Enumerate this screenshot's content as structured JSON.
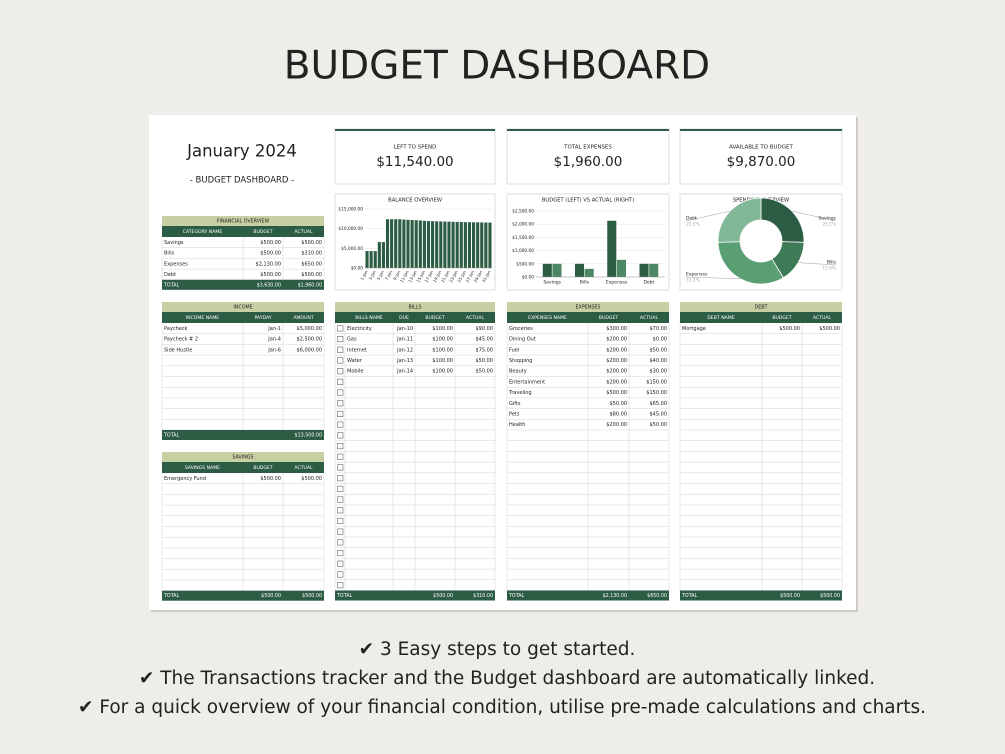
{
  "header": {
    "title": "BUDGET DASHBOARD"
  },
  "sheet": {
    "month": "January 2024",
    "subtitle": "- BUDGET DASHBOARD -",
    "kpis": [
      {
        "label": "LEFT TO SPEND",
        "value": "$11,540.00"
      },
      {
        "label": "TOTAL EXPENSES",
        "value": "$1,960.00"
      },
      {
        "label": "AVAILABLE TO BUDGET",
        "value": "$9,870.00"
      }
    ],
    "tables": {
      "financial": {
        "title": "FINANCIAL OVERVIEW",
        "columns": [
          "CATEGORY NAME",
          "BUDGET",
          "ACTUAL"
        ],
        "rows": [
          [
            "Savings",
            "$500.00",
            "$500.00"
          ],
          [
            "Bills",
            "$500.00",
            "$310.00"
          ],
          [
            "Expenses",
            "$2,130.00",
            "$650.00"
          ],
          [
            "Debt",
            "$500.00",
            "$500.00"
          ]
        ],
        "total": [
          "TOTAL",
          "$3,630.00",
          "$1,960.00"
        ]
      },
      "income": {
        "title": "INCOME",
        "columns": [
          "INCOME NAME",
          "PAYDAY",
          "AMOUNT"
        ],
        "rows": [
          [
            "Paycheck",
            "Jan-1",
            "$5,000.00"
          ],
          [
            "Paycheck # 2",
            "Jan-4",
            "$2,500.00"
          ],
          [
            "Side Hustle",
            "Jan-6",
            "$6,000.00"
          ]
        ],
        "total": [
          "TOTAL",
          null,
          "$13,500.00"
        ]
      },
      "savings": {
        "title": "SAVINGS",
        "columns": [
          "SAVINGS NAME",
          "BUDGET",
          "ACTUAL"
        ],
        "rows": [
          [
            "Emergency Fund",
            "$500.00",
            "$500.00"
          ]
        ],
        "total": [
          "TOTAL",
          "$500.00",
          "$500.00"
        ]
      },
      "bills": {
        "title": "BILLS",
        "columns": [
          "BILLS NAME",
          "DUE",
          "BUDGET",
          "ACTUAL"
        ],
        "rows": [
          [
            "Electricity",
            "Jan-10",
            "$100.00",
            "$90.00"
          ],
          [
            "Gas",
            "Jan-11",
            "$100.00",
            "$45.00"
          ],
          [
            "Internet",
            "Jan-12",
            "$100.00",
            "$75.00"
          ],
          [
            "Water",
            "Jan-13",
            "$100.00",
            "$50.00"
          ],
          [
            "Mobile",
            "Jan-14",
            "$100.00",
            "$50.00"
          ]
        ],
        "total": [
          "TOTAL",
          null,
          "$500.00",
          "$310.00"
        ]
      },
      "expenses": {
        "title": "EXPENSES",
        "columns": [
          "EXPENSES NAME",
          "BUDGET",
          "ACTUAL"
        ],
        "rows": [
          [
            "Groceries",
            "$300.00",
            "$70.00"
          ],
          [
            "Dining Out",
            "$200.00",
            "$0.00"
          ],
          [
            "Fuel",
            "$200.00",
            "$50.00"
          ],
          [
            "Shopping",
            "$200.00",
            "$40.00"
          ],
          [
            "Beauty",
            "$200.00",
            "$30.00"
          ],
          [
            "Entertainment",
            "$200.00",
            "$150.00"
          ],
          [
            "Traveling",
            "$500.00",
            "$150.00"
          ],
          [
            "Gifts",
            "$50.00",
            "$65.00"
          ],
          [
            "Pets",
            "$80.00",
            "$45.00"
          ],
          [
            "Health",
            "$200.00",
            "$50.00"
          ]
        ],
        "total": [
          "TOTAL",
          "$2,130.00",
          "$650.00"
        ]
      },
      "debt": {
        "title": "DEBT",
        "columns": [
          "DEBT NAME",
          "BUDGET",
          "ACTUAL"
        ],
        "rows": [
          [
            "Mortgage",
            "$500.00",
            "$500.00"
          ]
        ],
        "total": [
          "TOTAL",
          "$500.00",
          "$500.00"
        ]
      }
    }
  },
  "charts": [
    {
      "type": "bar",
      "title": "BALANCE OVERVIEW",
      "categories": [
        "1-Jan",
        null,
        "3-Jan",
        null,
        "5-Jan",
        null,
        "7-Jan",
        null,
        "9-Jan",
        null,
        "11-Jan",
        null,
        "13-Jan",
        null,
        "15-Jan",
        null,
        "17-Jan",
        null,
        "19-Jan",
        null,
        "21-Jan",
        null,
        "23-Jan",
        null,
        "25-Jan",
        null,
        "27-Jan",
        null,
        "29-Jan",
        null,
        "31-Jan"
      ],
      "values": [
        4300,
        4300,
        4300,
        6600,
        6600,
        12400,
        12400,
        12400,
        12400,
        12300,
        12250,
        12200,
        12150,
        12100,
        12000,
        11950,
        11900,
        11870,
        11840,
        11810,
        11780,
        11750,
        11720,
        11690,
        11660,
        11640,
        11620,
        11600,
        11580,
        11560,
        11540
      ],
      "color": "#2d5c45",
      "ylim": [
        0,
        15000
      ],
      "yticks": [
        {
          "value": 0,
          "label": "$0.00"
        },
        {
          "value": 5000,
          "label": "$5,000.00"
        },
        {
          "value": 10000,
          "label": "$10,000.00"
        },
        {
          "value": 15000,
          "label": "$15,000.00"
        }
      ],
      "grid": true
    },
    {
      "type": "grouped-bar",
      "title": "BUDGET (LEFT) VS ACTUAL (RIGHT)",
      "categories": [
        "Savings",
        "Bills",
        "Expenses",
        "Debt"
      ],
      "series": [
        {
          "color": "#2d5c45",
          "values": [
            500,
            500,
            2130,
            500
          ]
        },
        {
          "color": "#4d8763",
          "values": [
            500,
            310,
            650,
            500
          ]
        }
      ],
      "ylim": [
        0,
        2500
      ],
      "yticks": [
        {
          "value": 0,
          "label": "$0.00"
        },
        {
          "value": 500,
          "label": "$500.00"
        },
        {
          "value": 1000,
          "label": "$1,000.00"
        },
        {
          "value": 1500,
          "label": "$1,500.00"
        },
        {
          "value": 2000,
          "label": "$2,000.00"
        },
        {
          "value": 2500,
          "label": "$2,500.00"
        }
      ],
      "grid": true
    },
    {
      "type": "pie",
      "title": "SPENDING OVERVIEW",
      "categories": [
        "Savings",
        "Bills",
        "Expenses",
        "Debt"
      ],
      "values": [
        25.5,
        15.8,
        33.2,
        25.5
      ],
      "value_labels": [
        "25.5%",
        "15.8%",
        "33.2%",
        "25.5%"
      ],
      "colors": [
        "#2d5c45",
        "#3f7a57",
        "#5a9e74",
        "#80b897"
      ]
    }
  ],
  "footer": {
    "lines": [
      "✔ 3 Easy steps to get started.",
      "✔ The Transactions tracker and the Budget dashboard are automatically linked.",
      "✔ For a quick overview of your financial condition, utilise pre-made calculations and charts."
    ]
  }
}
